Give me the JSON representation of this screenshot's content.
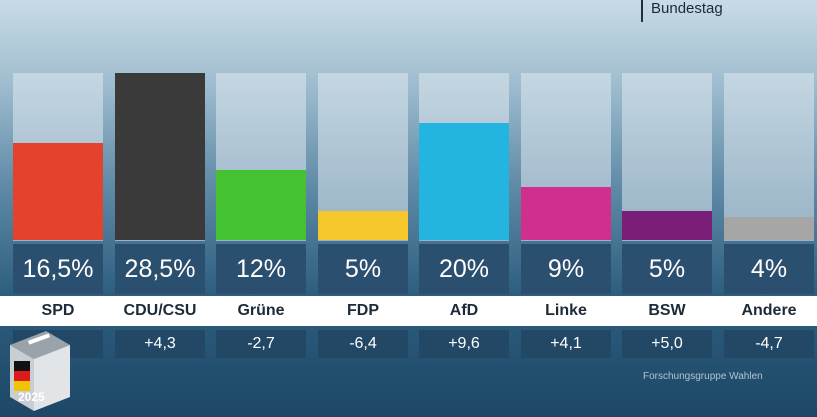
{
  "header": {
    "title": "Bundestag"
  },
  "source": "Forschungsgruppe Wahlen",
  "logo": {
    "year": "2025"
  },
  "chart_data": {
    "type": "bar",
    "title": "",
    "categories": [
      "SPD",
      "CDU/CSU",
      "Grüne",
      "FDP",
      "AfD",
      "Linke",
      "BSW",
      "Andere"
    ],
    "values": [
      16.5,
      28.5,
      12,
      5,
      20,
      9,
      5,
      4
    ],
    "value_labels": [
      "16,5%",
      "28,5%",
      "12%",
      "5%",
      "20%",
      "9%",
      "5%",
      "4%"
    ],
    "changes": [
      "",
      "+4,3",
      "-2,7",
      "-6,4",
      "+9,6",
      "+4,1",
      "+5,0",
      "-4,7"
    ],
    "colors": [
      "#e3422c",
      "#3a3a3a",
      "#44c231",
      "#f6c72b",
      "#24b4e0",
      "#d02f8e",
      "#7a1f78",
      "#a6a6a6"
    ],
    "ylim": [
      0,
      28.5
    ]
  }
}
